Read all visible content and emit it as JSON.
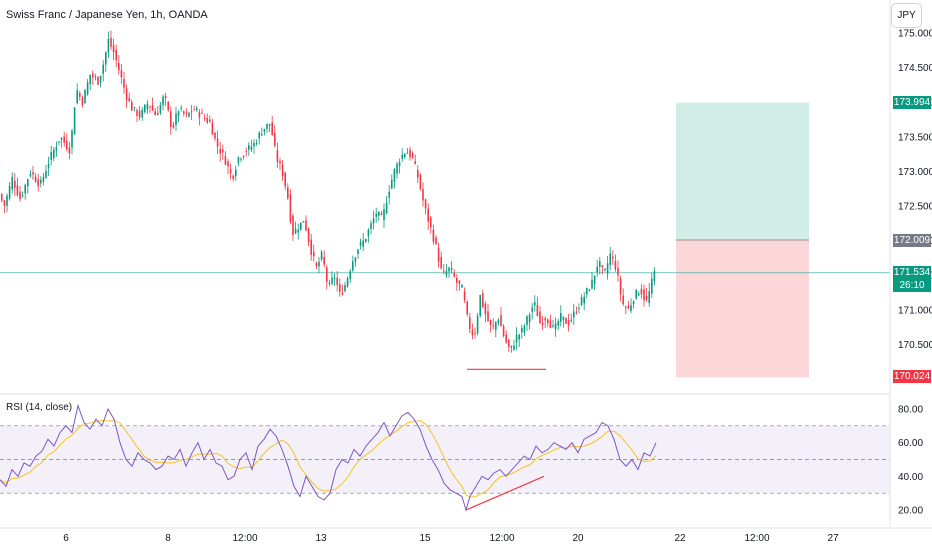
{
  "symbol": {
    "title": "Swiss Franc / Japanese Yen, 1h, OANDA"
  },
  "currency_button": "JPY",
  "rsi": {
    "title": "RSI (14, close)"
  },
  "price_axis": {
    "ticks": [
      "175.000",
      "174.500",
      "174.000",
      "173.500",
      "173.000",
      "172.500",
      "172.000",
      "171.500",
      "171.000",
      "170.500",
      "170.000"
    ]
  },
  "rsi_axis": {
    "ticks": [
      "80.00",
      "60.00",
      "40.00",
      "20.00"
    ]
  },
  "time_axis": {
    "ticks": [
      "6",
      "8",
      "12:00",
      "13",
      "15",
      "12:00",
      "20",
      "22",
      "12:00",
      "27"
    ]
  },
  "price_tags": {
    "take_profit": "173.994",
    "entry": "172.009",
    "current": "171.534",
    "countdown": "26:10",
    "stop_loss": "170.024"
  },
  "colors": {
    "up": "#089981",
    "down": "#f23645",
    "profit_zone": "#d1eee6",
    "loss_zone": "#fbd7da",
    "rsi_line": "#7e57c2",
    "rsi_ma": "#f7c325",
    "divergence": "#f23645"
  },
  "chart_data": {
    "type": "candlestick",
    "symbol": "CHFJPY",
    "timeframe": "1h",
    "price_ylim": [
      169.7,
      175.1
    ],
    "price_path": [
      [
        0,
        172.7
      ],
      [
        6,
        172.5
      ],
      [
        14,
        172.9
      ],
      [
        22,
        172.6
      ],
      [
        32,
        173.0
      ],
      [
        42,
        172.8
      ],
      [
        52,
        173.2
      ],
      [
        62,
        173.5
      ],
      [
        72,
        173.3
      ],
      [
        78,
        174.2
      ],
      [
        84,
        174.0
      ],
      [
        92,
        174.4
      ],
      [
        100,
        174.3
      ],
      [
        106,
        174.6
      ],
      [
        110,
        174.9
      ],
      [
        116,
        174.7
      ],
      [
        122,
        174.4
      ],
      [
        128,
        174.1
      ],
      [
        134,
        173.9
      ],
      [
        142,
        173.8
      ],
      [
        150,
        174.0
      ],
      [
        158,
        173.8
      ],
      [
        166,
        174.1
      ],
      [
        174,
        173.6
      ],
      [
        180,
        173.9
      ],
      [
        188,
        173.8
      ],
      [
        196,
        173.9
      ],
      [
        204,
        173.8
      ],
      [
        212,
        173.7
      ],
      [
        218,
        173.4
      ],
      [
        226,
        173.2
      ],
      [
        234,
        172.9
      ],
      [
        240,
        173.2
      ],
      [
        248,
        173.3
      ],
      [
        256,
        173.4
      ],
      [
        264,
        173.6
      ],
      [
        272,
        173.7
      ],
      [
        278,
        173.2
      ],
      [
        284,
        173.0
      ],
      [
        290,
        172.6
      ],
      [
        294,
        172.1
      ],
      [
        300,
        172.2
      ],
      [
        306,
        172.3
      ],
      [
        312,
        171.9
      ],
      [
        318,
        171.6
      ],
      [
        324,
        171.8
      ],
      [
        330,
        171.3
      ],
      [
        336,
        171.5
      ],
      [
        342,
        171.2
      ],
      [
        348,
        171.4
      ],
      [
        354,
        171.7
      ],
      [
        360,
        171.9
      ],
      [
        366,
        172.0
      ],
      [
        372,
        172.2
      ],
      [
        378,
        172.4
      ],
      [
        384,
        172.3
      ],
      [
        390,
        172.7
      ],
      [
        396,
        173.0
      ],
      [
        402,
        173.2
      ],
      [
        408,
        173.3
      ],
      [
        414,
        173.2
      ],
      [
        420,
        172.9
      ],
      [
        426,
        172.5
      ],
      [
        432,
        172.2
      ],
      [
        438,
        171.9
      ],
      [
        444,
        171.5
      ],
      [
        452,
        171.6
      ],
      [
        458,
        171.4
      ],
      [
        464,
        171.3
      ],
      [
        470,
        170.8
      ],
      [
        476,
        170.6
      ],
      [
        482,
        171.2
      ],
      [
        488,
        170.9
      ],
      [
        494,
        170.7
      ],
      [
        500,
        170.9
      ],
      [
        506,
        170.6
      ],
      [
        512,
        170.4
      ],
      [
        518,
        170.6
      ],
      [
        524,
        170.7
      ],
      [
        530,
        170.9
      ],
      [
        536,
        171.1
      ],
      [
        542,
        170.8
      ],
      [
        548,
        170.9
      ],
      [
        556,
        170.7
      ],
      [
        562,
        170.9
      ],
      [
        570,
        170.8
      ],
      [
        578,
        171.0
      ],
      [
        586,
        171.2
      ],
      [
        594,
        171.4
      ],
      [
        600,
        171.7
      ],
      [
        606,
        171.5
      ],
      [
        612,
        171.8
      ],
      [
        618,
        171.6
      ],
      [
        624,
        171.1
      ],
      [
        630,
        171.0
      ],
      [
        636,
        171.2
      ],
      [
        642,
        171.3
      ],
      [
        648,
        171.1
      ],
      [
        652,
        171.3
      ],
      [
        656,
        171.534
      ]
    ],
    "rsi_ylim": [
      15,
      85
    ],
    "rsi_path": [
      [
        0,
        38
      ],
      [
        6,
        34
      ],
      [
        12,
        44
      ],
      [
        18,
        40
      ],
      [
        24,
        48
      ],
      [
        30,
        46
      ],
      [
        36,
        52
      ],
      [
        42,
        55
      ],
      [
        48,
        62
      ],
      [
        54,
        58
      ],
      [
        60,
        66
      ],
      [
        66,
        70
      ],
      [
        72,
        66
      ],
      [
        78,
        82
      ],
      [
        84,
        72
      ],
      [
        90,
        68
      ],
      [
        96,
        74
      ],
      [
        102,
        70
      ],
      [
        108,
        80
      ],
      [
        114,
        74
      ],
      [
        120,
        60
      ],
      [
        126,
        50
      ],
      [
        132,
        46
      ],
      [
        138,
        54
      ],
      [
        144,
        50
      ],
      [
        150,
        48
      ],
      [
        156,
        44
      ],
      [
        162,
        46
      ],
      [
        168,
        52
      ],
      [
        174,
        50
      ],
      [
        180,
        56
      ],
      [
        186,
        46
      ],
      [
        192,
        54
      ],
      [
        198,
        60
      ],
      [
        204,
        50
      ],
      [
        210,
        56
      ],
      [
        216,
        48
      ],
      [
        222,
        46
      ],
      [
        228,
        38
      ],
      [
        234,
        40
      ],
      [
        240,
        50
      ],
      [
        246,
        54
      ],
      [
        252,
        44
      ],
      [
        258,
        58
      ],
      [
        264,
        62
      ],
      [
        270,
        68
      ],
      [
        276,
        64
      ],
      [
        282,
        56
      ],
      [
        288,
        46
      ],
      [
        294,
        34
      ],
      [
        300,
        28
      ],
      [
        306,
        40
      ],
      [
        312,
        34
      ],
      [
        318,
        28
      ],
      [
        324,
        26
      ],
      [
        330,
        30
      ],
      [
        336,
        44
      ],
      [
        342,
        50
      ],
      [
        348,
        48
      ],
      [
        354,
        56
      ],
      [
        360,
        52
      ],
      [
        366,
        58
      ],
      [
        372,
        62
      ],
      [
        378,
        66
      ],
      [
        384,
        72
      ],
      [
        390,
        64
      ],
      [
        396,
        70
      ],
      [
        402,
        76
      ],
      [
        408,
        78
      ],
      [
        414,
        74
      ],
      [
        420,
        68
      ],
      [
        426,
        58
      ],
      [
        432,
        50
      ],
      [
        438,
        44
      ],
      [
        444,
        36
      ],
      [
        450,
        32
      ],
      [
        456,
        30
      ],
      [
        462,
        28
      ],
      [
        466,
        20
      ],
      [
        470,
        28
      ],
      [
        476,
        34
      ],
      [
        482,
        40
      ],
      [
        488,
        38
      ],
      [
        494,
        42
      ],
      [
        500,
        44
      ],
      [
        506,
        40
      ],
      [
        512,
        44
      ],
      [
        518,
        48
      ],
      [
        524,
        52
      ],
      [
        530,
        50
      ],
      [
        536,
        58
      ],
      [
        542,
        54
      ],
      [
        548,
        56
      ],
      [
        554,
        60
      ],
      [
        560,
        58
      ],
      [
        566,
        56
      ],
      [
        572,
        60
      ],
      [
        578,
        54
      ],
      [
        584,
        62
      ],
      [
        590,
        64
      ],
      [
        596,
        66
      ],
      [
        602,
        72
      ],
      [
        608,
        70
      ],
      [
        614,
        62
      ],
      [
        620,
        50
      ],
      [
        626,
        46
      ],
      [
        632,
        50
      ],
      [
        638,
        44
      ],
      [
        644,
        54
      ],
      [
        650,
        52
      ],
      [
        656,
        60
      ]
    ],
    "rsi_levels": [
      70,
      50,
      30
    ],
    "position": {
      "type": "long",
      "entry": 172.009,
      "take_profit": 173.994,
      "stop_loss": 170.024
    },
    "support_line_price": 170.14,
    "rsi_divergence": {
      "from": [
        466,
        20
      ],
      "to": [
        544,
        40
      ]
    }
  }
}
